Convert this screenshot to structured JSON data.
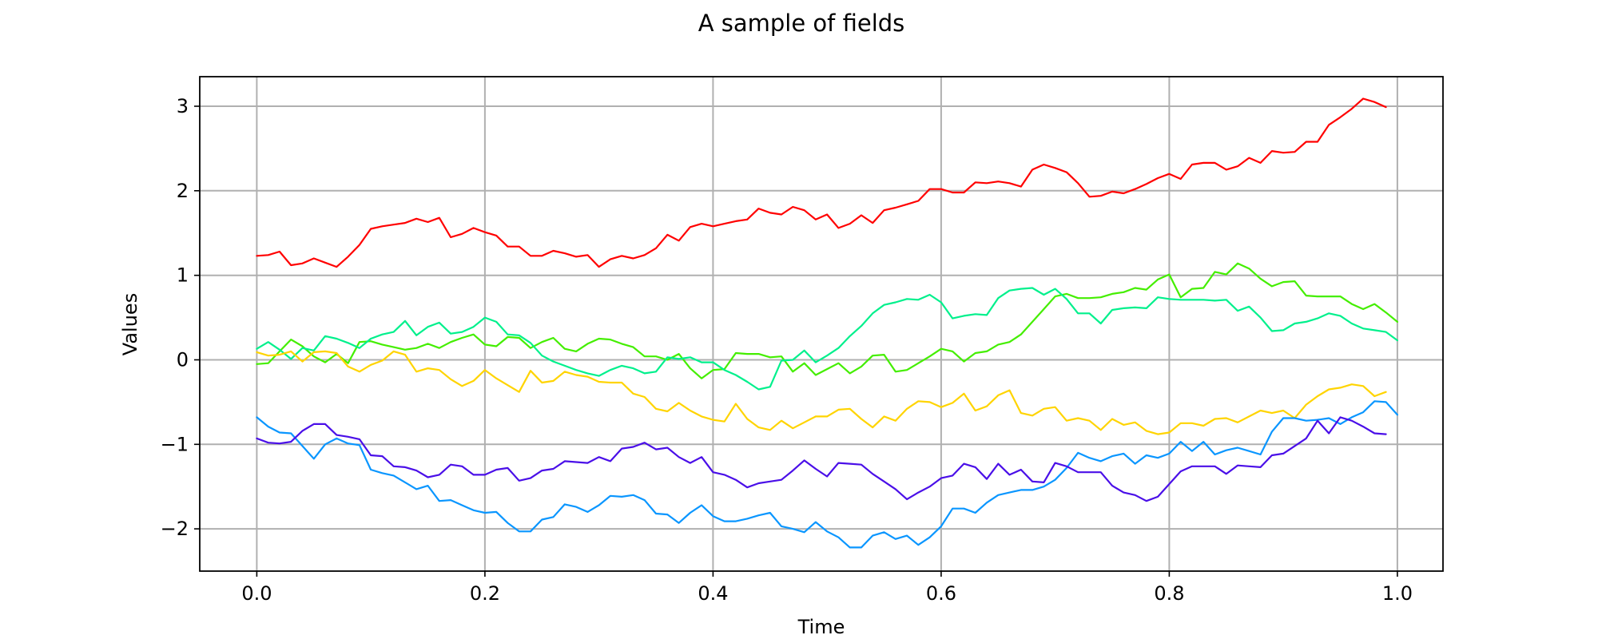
{
  "chart_data": {
    "type": "line",
    "title": "A sample of fields",
    "xlabel": "Time",
    "ylabel": "Values",
    "xlim": [
      -0.05,
      1.04
    ],
    "ylim": [
      -2.5,
      3.35
    ],
    "xticks": [
      0.0,
      0.2,
      0.4,
      0.6,
      0.8,
      1.0
    ],
    "xtick_labels": [
      "0.0",
      "0.2",
      "0.4",
      "0.6",
      "0.8",
      "1.0"
    ],
    "yticks": [
      -2,
      -1,
      0,
      1,
      2,
      3
    ],
    "ytick_labels": [
      "−2",
      "−1",
      "0",
      "1",
      "2",
      "3"
    ],
    "grid": true,
    "legend": "none",
    "x_start": 0.0,
    "x_step": 0.01,
    "series": [
      {
        "color": "#ff0000",
        "values": [
          1.23,
          1.24,
          1.28,
          1.12,
          1.14,
          1.2,
          1.15,
          1.1,
          1.22,
          1.36,
          1.55,
          1.58,
          1.6,
          1.62,
          1.67,
          1.63,
          1.68,
          1.45,
          1.49,
          1.56,
          1.51,
          1.47,
          1.34,
          1.34,
          1.23,
          1.23,
          1.29,
          1.26,
          1.22,
          1.24,
          1.1,
          1.19,
          1.23,
          1.2,
          1.24,
          1.32,
          1.48,
          1.41,
          1.57,
          1.61,
          1.58,
          1.61,
          1.64,
          1.66,
          1.79,
          1.74,
          1.72,
          1.81,
          1.77,
          1.66,
          1.72,
          1.56,
          1.61,
          1.71,
          1.62,
          1.77,
          1.8,
          1.84,
          1.88,
          2.02,
          2.02,
          1.98,
          1.98,
          2.1,
          2.09,
          2.11,
          2.09,
          2.05,
          2.25,
          2.31,
          2.27,
          2.22,
          2.09,
          1.93,
          1.94,
          1.99,
          1.97,
          2.02,
          2.08,
          2.15,
          2.2,
          2.14,
          2.31,
          2.33,
          2.33,
          2.25,
          2.29,
          2.39,
          2.33,
          2.47,
          2.45,
          2.46,
          2.58,
          2.58,
          2.78,
          2.87,
          2.97,
          3.09,
          3.05,
          2.99
        ]
      },
      {
        "color": "#44ee00",
        "values": [
          -0.05,
          -0.04,
          0.1,
          0.24,
          0.16,
          0.04,
          -0.03,
          0.07,
          -0.04,
          0.21,
          0.22,
          0.18,
          0.15,
          0.12,
          0.14,
          0.19,
          0.14,
          0.21,
          0.26,
          0.3,
          0.18,
          0.16,
          0.27,
          0.26,
          0.14,
          0.21,
          0.26,
          0.13,
          0.1,
          0.19,
          0.25,
          0.24,
          0.19,
          0.15,
          0.04,
          0.04,
          0.0,
          0.07,
          -0.1,
          -0.22,
          -0.12,
          -0.11,
          0.08,
          0.07,
          0.07,
          0.03,
          0.04,
          -0.14,
          -0.04,
          -0.18,
          -0.11,
          -0.04,
          -0.16,
          -0.08,
          0.05,
          0.06,
          -0.14,
          -0.12,
          -0.04,
          0.04,
          0.13,
          0.1,
          -0.02,
          0.08,
          0.1,
          0.18,
          0.21,
          0.3,
          0.45,
          0.6,
          0.75,
          0.78,
          0.73,
          0.73,
          0.74,
          0.78,
          0.8,
          0.85,
          0.83,
          0.95,
          1.01,
          0.74,
          0.84,
          0.85,
          1.04,
          1.01,
          1.14,
          1.08,
          0.96,
          0.87,
          0.92,
          0.93,
          0.76,
          0.75,
          0.75,
          0.75,
          0.66,
          0.6,
          0.66,
          0.56,
          0.45
        ]
      },
      {
        "color": "#00f08c",
        "values": [
          0.13,
          0.21,
          0.12,
          0.01,
          0.14,
          0.11,
          0.28,
          0.25,
          0.2,
          0.14,
          0.25,
          0.3,
          0.33,
          0.46,
          0.29,
          0.39,
          0.44,
          0.31,
          0.33,
          0.39,
          0.5,
          0.45,
          0.3,
          0.29,
          0.2,
          0.05,
          -0.02,
          -0.07,
          -0.12,
          -0.16,
          -0.19,
          -0.12,
          -0.07,
          -0.1,
          -0.16,
          -0.14,
          0.03,
          0.01,
          0.03,
          -0.03,
          -0.03,
          -0.12,
          -0.18,
          -0.26,
          -0.35,
          -0.32,
          -0.01,
          0.0,
          0.11,
          -0.03,
          0.05,
          0.14,
          0.28,
          0.4,
          0.55,
          0.65,
          0.68,
          0.72,
          0.71,
          0.77,
          0.68,
          0.49,
          0.52,
          0.54,
          0.53,
          0.73,
          0.82,
          0.84,
          0.85,
          0.77,
          0.84,
          0.72,
          0.55,
          0.55,
          0.43,
          0.59,
          0.61,
          0.62,
          0.61,
          0.74,
          0.72,
          0.71,
          0.71,
          0.71,
          0.7,
          0.71,
          0.58,
          0.63,
          0.5,
          0.34,
          0.35,
          0.43,
          0.45,
          0.49,
          0.55,
          0.52,
          0.43,
          0.37,
          0.35,
          0.33,
          0.23
        ]
      },
      {
        "color": "#ffd400",
        "values": [
          0.09,
          0.05,
          0.06,
          0.1,
          -0.02,
          0.09,
          0.1,
          0.08,
          -0.08,
          -0.14,
          -0.06,
          -0.01,
          0.1,
          0.06,
          -0.14,
          -0.1,
          -0.12,
          -0.23,
          -0.31,
          -0.25,
          -0.12,
          -0.22,
          -0.3,
          -0.38,
          -0.13,
          -0.27,
          -0.25,
          -0.14,
          -0.18,
          -0.2,
          -0.26,
          -0.27,
          -0.27,
          -0.4,
          -0.44,
          -0.58,
          -0.61,
          -0.51,
          -0.6,
          -0.67,
          -0.71,
          -0.73,
          -0.52,
          -0.7,
          -0.8,
          -0.83,
          -0.72,
          -0.81,
          -0.74,
          -0.67,
          -0.67,
          -0.59,
          -0.58,
          -0.7,
          -0.8,
          -0.67,
          -0.72,
          -0.58,
          -0.49,
          -0.5,
          -0.56,
          -0.51,
          -0.4,
          -0.6,
          -0.55,
          -0.42,
          -0.36,
          -0.63,
          -0.66,
          -0.58,
          -0.56,
          -0.72,
          -0.69,
          -0.72,
          -0.83,
          -0.7,
          -0.77,
          -0.74,
          -0.84,
          -0.88,
          -0.86,
          -0.75,
          -0.75,
          -0.78,
          -0.7,
          -0.69,
          -0.74,
          -0.67,
          -0.6,
          -0.63,
          -0.6,
          -0.69,
          -0.53,
          -0.43,
          -0.35,
          -0.33,
          -0.29,
          -0.31,
          -0.43,
          -0.38
        ]
      },
      {
        "color": "#0a96ff",
        "values": [
          -0.68,
          -0.79,
          -0.86,
          -0.87,
          -1.02,
          -1.17,
          -1.0,
          -0.93,
          -0.99,
          -1.01,
          -1.3,
          -1.34,
          -1.37,
          -1.45,
          -1.53,
          -1.49,
          -1.67,
          -1.66,
          -1.72,
          -1.78,
          -1.81,
          -1.8,
          -1.93,
          -2.03,
          -2.03,
          -1.89,
          -1.86,
          -1.71,
          -1.74,
          -1.8,
          -1.72,
          -1.61,
          -1.62,
          -1.6,
          -1.66,
          -1.82,
          -1.83,
          -1.93,
          -1.81,
          -1.72,
          -1.85,
          -1.91,
          -1.91,
          -1.88,
          -1.84,
          -1.81,
          -1.97,
          -2.0,
          -2.04,
          -1.92,
          -2.03,
          -2.1,
          -2.22,
          -2.22,
          -2.08,
          -2.04,
          -2.12,
          -2.08,
          -2.19,
          -2.1,
          -1.97,
          -1.76,
          -1.76,
          -1.81,
          -1.69,
          -1.6,
          -1.57,
          -1.54,
          -1.54,
          -1.5,
          -1.42,
          -1.28,
          -1.1,
          -1.16,
          -1.2,
          -1.14,
          -1.11,
          -1.23,
          -1.13,
          -1.16,
          -1.11,
          -0.97,
          -1.08,
          -0.97,
          -1.12,
          -1.07,
          -1.04,
          -1.08,
          -1.12,
          -0.85,
          -0.69,
          -0.69,
          -0.72,
          -0.71,
          -0.69,
          -0.76,
          -0.68,
          -0.62,
          -0.49,
          -0.5,
          -0.65
        ]
      },
      {
        "color": "#4a0fe8",
        "values": [
          -0.93,
          -0.98,
          -0.99,
          -0.97,
          -0.84,
          -0.76,
          -0.76,
          -0.89,
          -0.91,
          -0.94,
          -1.13,
          -1.14,
          -1.26,
          -1.27,
          -1.31,
          -1.39,
          -1.36,
          -1.24,
          -1.26,
          -1.36,
          -1.36,
          -1.3,
          -1.28,
          -1.43,
          -1.4,
          -1.31,
          -1.29,
          -1.2,
          -1.21,
          -1.22,
          -1.15,
          -1.2,
          -1.05,
          -1.03,
          -0.98,
          -1.06,
          -1.04,
          -1.15,
          -1.22,
          -1.15,
          -1.33,
          -1.36,
          -1.42,
          -1.51,
          -1.46,
          -1.44,
          -1.42,
          -1.31,
          -1.19,
          -1.29,
          -1.38,
          -1.22,
          -1.23,
          -1.24,
          -1.35,
          -1.44,
          -1.53,
          -1.65,
          -1.57,
          -1.5,
          -1.4,
          -1.37,
          -1.23,
          -1.27,
          -1.41,
          -1.23,
          -1.36,
          -1.3,
          -1.44,
          -1.45,
          -1.22,
          -1.26,
          -1.33,
          -1.33,
          -1.33,
          -1.49,
          -1.57,
          -1.6,
          -1.67,
          -1.62,
          -1.47,
          -1.32,
          -1.26,
          -1.26,
          -1.26,
          -1.35,
          -1.25,
          -1.26,
          -1.27,
          -1.13,
          -1.11,
          -1.02,
          -0.93,
          -0.72,
          -0.87,
          -0.68,
          -0.72,
          -0.79,
          -0.87,
          -0.88
        ]
      }
    ]
  }
}
